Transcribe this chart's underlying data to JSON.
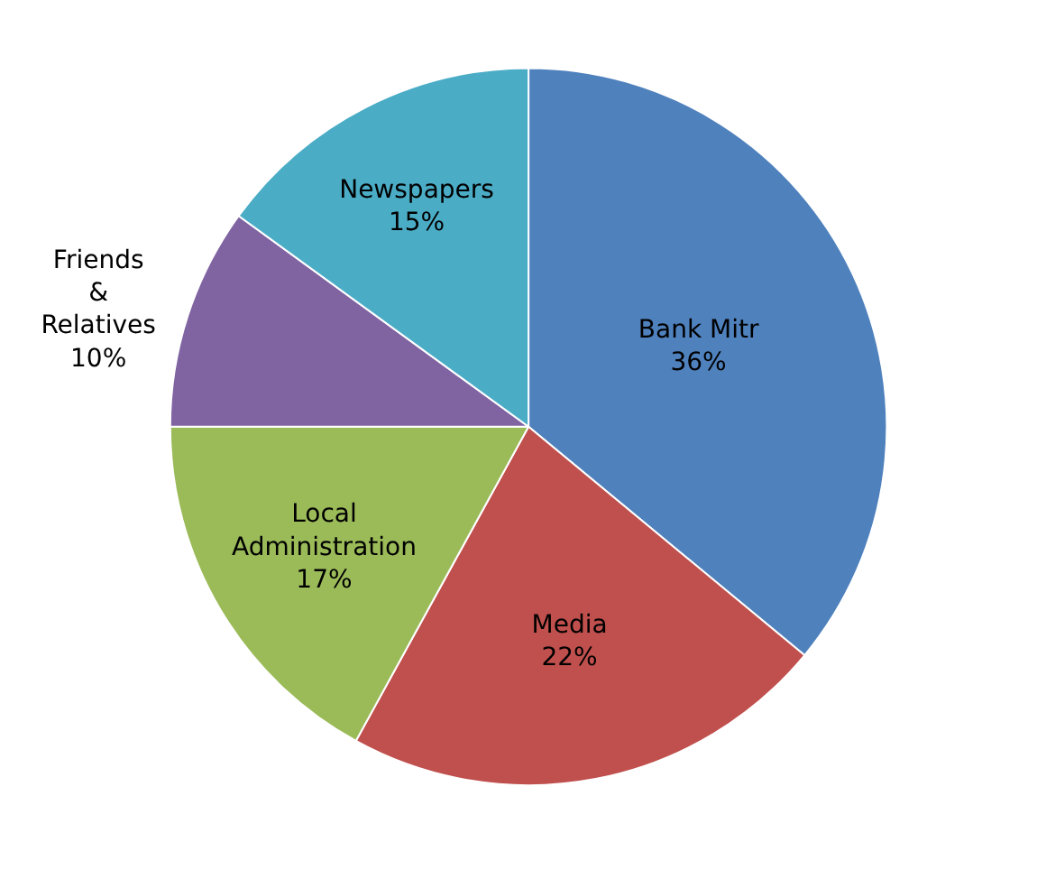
{
  "chart_data": {
    "type": "pie",
    "categories": [
      "Bank Mitr",
      "Media",
      "Local Administration",
      "Friends & Relatives",
      "Newspapers"
    ],
    "values": [
      36,
      22,
      17,
      10,
      15
    ],
    "value_labels": [
      "36%",
      "22%",
      "17%",
      "10%",
      "15%"
    ],
    "colors": [
      "#4f81bd",
      "#c0504d",
      "#9bbb59",
      "#8064a2",
      "#4bacc6"
    ],
    "legend": false
  }
}
